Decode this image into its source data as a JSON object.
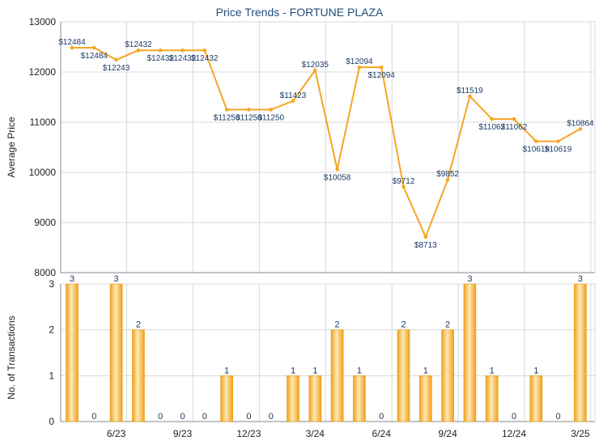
{
  "chart_data": [
    {
      "type": "line",
      "title": "Price Trends - FORTUNE PLAZA",
      "ylabel": "Average Price",
      "ylim": [
        8000,
        13000
      ],
      "yticks": [
        8000,
        9000,
        10000,
        11000,
        12000,
        13000
      ],
      "grid": true,
      "colors": {
        "line": "#f5a623",
        "grid": "#d8d8d8",
        "axis": "#555555"
      },
      "series": [
        {
          "values": [
            12484,
            12484,
            12243,
            12432,
            12432,
            12432,
            12432,
            11250,
            11250,
            11250,
            11423,
            12035,
            10058,
            12094,
            12094,
            9712,
            8713,
            9852,
            11519,
            11062,
            11062,
            10619,
            10619,
            10864
          ],
          "labels": [
            "$12484",
            "$12484",
            "$12243",
            "$12432",
            "$12432",
            "$12432",
            "$12432",
            "$11250",
            "$11250",
            "$11250",
            "$11423",
            "$12035",
            "$10058",
            "$12094",
            "$12094",
            "$9712",
            "$8713",
            "$9852",
            "$11519",
            "$11062",
            "$11062",
            "$10619",
            "$10619",
            "$10864"
          ]
        }
      ]
    },
    {
      "type": "bar",
      "ylabel": "No. of Transactions",
      "ylim": [
        0,
        3
      ],
      "yticks": [
        0,
        1,
        2,
        3
      ],
      "grid": true,
      "colors": {
        "bar": "#f5a623",
        "bar_light": "#fde9b8",
        "grid": "#d8d8d8"
      },
      "values": [
        3,
        0,
        3,
        2,
        0,
        0,
        0,
        1,
        0,
        0,
        1,
        1,
        2,
        1,
        0,
        2,
        1,
        2,
        3,
        1,
        0,
        1,
        0,
        3
      ],
      "value_labels": [
        "3",
        "0",
        "3",
        "2",
        "0",
        "0",
        "0",
        "1",
        "0",
        "0",
        "1",
        "1",
        "2",
        "1",
        "0",
        "2",
        "1",
        "2",
        "3",
        "1",
        "0",
        "1",
        "0",
        "3"
      ],
      "x_tick_labels": [
        {
          "index": 2,
          "label": "6/23"
        },
        {
          "index": 5,
          "label": "9/23"
        },
        {
          "index": 8,
          "label": "12/23"
        },
        {
          "index": 11,
          "label": "3/24"
        },
        {
          "index": 14,
          "label": "6/24"
        },
        {
          "index": 17,
          "label": "9/24"
        },
        {
          "index": 20,
          "label": "12/24"
        },
        {
          "index": 23,
          "label": "3/25"
        }
      ]
    }
  ]
}
